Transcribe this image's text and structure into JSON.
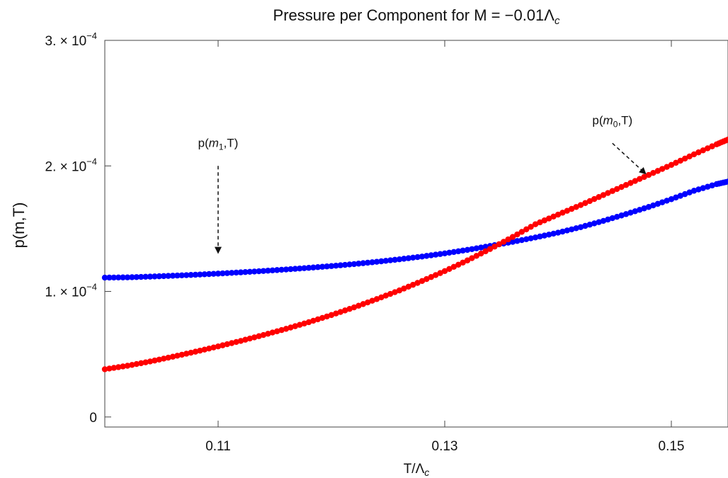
{
  "chart_data": {
    "type": "scatter",
    "title": "Pressure per Component for M = −0.01Λ",
    "title_sub": "c",
    "xlabel": "T/Λ",
    "xlabel_sub": "c",
    "ylabel": "p(m,T)",
    "xlim": [
      0.1,
      0.155
    ],
    "ylim": [
      -8e-06,
      0.0003
    ],
    "x_ticks": [
      {
        "value": 0.11,
        "label": "0.11"
      },
      {
        "value": 0.13,
        "label": "0.13"
      },
      {
        "value": 0.15,
        "label": "0.15"
      }
    ],
    "y_ticks": [
      {
        "value": 0,
        "label": "0",
        "exp": ""
      },
      {
        "value": 0.0001,
        "label": "1. × 10",
        "exp": "−4"
      },
      {
        "value": 0.0002,
        "label": "2. × 10",
        "exp": "−4"
      },
      {
        "value": 0.0003,
        "label": "3. × 10",
        "exp": "−4"
      }
    ],
    "grid": false,
    "series": [
      {
        "name": "p(m1,T)",
        "color": "#0000ff",
        "x": [
          0.1,
          0.102,
          0.104,
          0.106,
          0.108,
          0.11,
          0.112,
          0.114,
          0.116,
          0.118,
          0.12,
          0.122,
          0.124,
          0.126,
          0.128,
          0.13,
          0.132,
          0.134,
          0.136,
          0.138,
          0.14,
          0.142,
          0.144,
          0.146,
          0.148,
          0.15,
          0.152,
          0.154,
          0.155
        ],
        "y": [
          0.000111,
          0.0001112,
          0.0001118,
          0.0001125,
          0.0001133,
          0.0001142,
          0.0001152,
          0.0001163,
          0.0001175,
          0.0001188,
          0.0001202,
          0.0001218,
          0.0001236,
          0.0001256,
          0.0001278,
          0.0001303,
          0.0001331,
          0.0001362,
          0.0001395,
          0.000143,
          0.0001468,
          0.0001512,
          0.0001562,
          0.0001616,
          0.0001673,
          0.0001735,
          0.0001802,
          0.0001855,
          0.0001875
        ]
      },
      {
        "name": "p(m0,T)",
        "color": "#ff0000",
        "x": [
          0.1,
          0.102,
          0.104,
          0.106,
          0.108,
          0.11,
          0.112,
          0.114,
          0.116,
          0.118,
          0.12,
          0.122,
          0.124,
          0.126,
          0.128,
          0.13,
          0.132,
          0.134,
          0.136,
          0.138,
          0.14,
          0.142,
          0.144,
          0.146,
          0.148,
          0.15,
          0.152,
          0.154,
          0.155
        ],
        "y": [
          3.8e-05,
          4.08e-05,
          4.42e-05,
          4.8e-05,
          5.2e-05,
          5.62e-05,
          6.06e-05,
          6.53e-05,
          7.02e-05,
          7.55e-05,
          8.12e-05,
          8.73e-05,
          9.39e-05,
          0.0001008,
          0.0001083,
          0.0001162,
          0.0001247,
          0.0001338,
          0.0001434,
          0.0001535,
          0.0001612,
          0.0001688,
          0.0001768,
          0.0001848,
          0.0001928,
          0.0002008,
          0.0002092,
          0.0002172,
          0.000221
        ]
      }
    ],
    "annotations": [
      {
        "label_pre": "p(",
        "label_var": "m",
        "label_sub": "1",
        "label_post": ",T)",
        "arrow_from": [
          0.11,
          0.0002
        ],
        "arrow_to": [
          0.11,
          0.000131
        ]
      },
      {
        "label_pre": "p(",
        "label_var": "m",
        "label_sub": "0",
        "label_post": ",T)",
        "arrow_from": [
          0.1448,
          0.000218
        ],
        "arrow_to": [
          0.1477,
          0.000194
        ]
      }
    ]
  }
}
